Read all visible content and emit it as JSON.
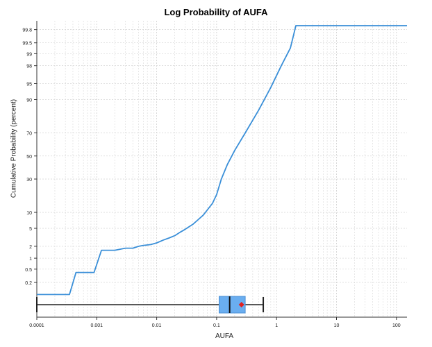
{
  "chart_data": {
    "type": "line",
    "title": "Log Probability of AUFA",
    "xlabel": "AUFA",
    "ylabel": "Cumulative Probability (percent)",
    "x_scale": "log",
    "y_scale": "probability",
    "xlim": [
      0.0001,
      150
    ],
    "x_ticks": [
      0.0001,
      0.001,
      0.01,
      0.1,
      1,
      10,
      100
    ],
    "x_tick_labels": [
      "0.0001",
      "0.001",
      "0.01",
      "0.1",
      "1",
      "10",
      "100"
    ],
    "y_ticks": [
      0.2,
      0.5,
      1,
      2,
      5,
      10,
      30,
      50,
      70,
      90,
      95,
      98,
      99,
      99.5,
      99.8
    ],
    "y_tick_labels": [
      "0.2",
      "0.5",
      "1",
      "2",
      "5",
      "10",
      "30",
      "50",
      "70",
      "90",
      "95",
      "98",
      "99",
      "99.5",
      "99.8"
    ],
    "grid": true,
    "line_color": "#3a8fd8",
    "series": [
      {
        "points": [
          [
            0.0001,
            0.08
          ],
          [
            0.00035,
            0.08
          ],
          [
            0.00045,
            0.4
          ],
          [
            0.0009,
            0.4
          ],
          [
            0.0012,
            1.6
          ],
          [
            0.002,
            1.6
          ],
          [
            0.003,
            1.8
          ],
          [
            0.004,
            1.8
          ],
          [
            0.005,
            2.0
          ],
          [
            0.006,
            2.1
          ],
          [
            0.008,
            2.2
          ],
          [
            0.01,
            2.4
          ],
          [
            0.013,
            2.8
          ],
          [
            0.016,
            3.1
          ],
          [
            0.02,
            3.5
          ],
          [
            0.025,
            4.2
          ],
          [
            0.03,
            4.8
          ],
          [
            0.04,
            6.0
          ],
          [
            0.05,
            7.5
          ],
          [
            0.06,
            9.0
          ],
          [
            0.07,
            11.0
          ],
          [
            0.085,
            14.0
          ],
          [
            0.1,
            19.0
          ],
          [
            0.12,
            30.0
          ],
          [
            0.15,
            42.0
          ],
          [
            0.2,
            55.0
          ],
          [
            0.3,
            70.0
          ],
          [
            0.5,
            85.0
          ],
          [
            0.8,
            94.0
          ],
          [
            1.2,
            98.0
          ],
          [
            1.7,
            99.3
          ],
          [
            2.1,
            99.85
          ],
          [
            150,
            99.85
          ]
        ]
      }
    ],
    "boxplot": {
      "whisker_low": 0.0001,
      "q1": 0.11,
      "median": 0.165,
      "q3": 0.3,
      "whisker_high": 0.6,
      "mean": 0.26,
      "box_color": "#6aaef0",
      "mean_color": "#e02020"
    }
  }
}
